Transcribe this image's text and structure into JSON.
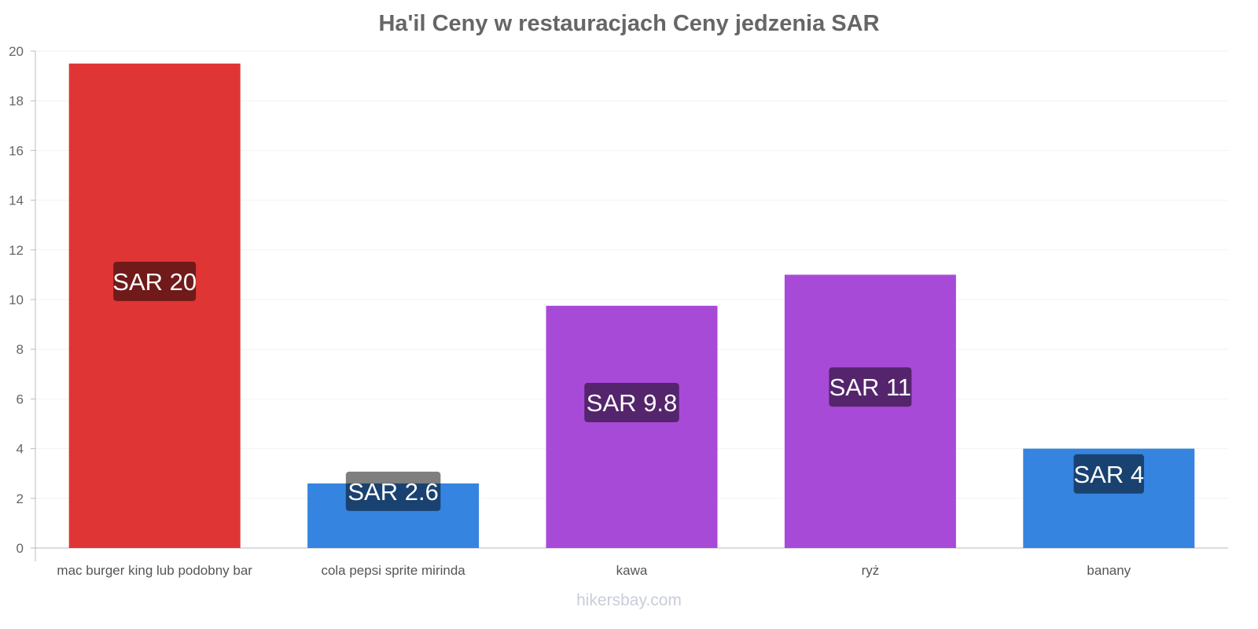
{
  "chart_data": {
    "type": "bar",
    "title": "Ha'il Ceny w restauracjach Ceny jedzenia SAR",
    "categories": [
      "mac burger king lub podobny bar",
      "cola pepsi sprite mirinda",
      "kawa",
      "ryż",
      "banany"
    ],
    "values": [
      19.5,
      2.6,
      9.75,
      11,
      4
    ],
    "data_labels": [
      "SAR 20",
      "SAR 2.6",
      "SAR 9.8",
      "SAR 11",
      "SAR 4"
    ],
    "colors": [
      "#e03535",
      "#3584e0",
      "#a84ad8",
      "#a84ad8",
      "#3584e0"
    ],
    "xlabel": "",
    "ylabel": "",
    "ylim": [
      0,
      20
    ],
    "yticks": [
      0,
      2,
      4,
      6,
      8,
      10,
      12,
      14,
      16,
      18,
      20
    ],
    "grid": true,
    "legend": "none"
  },
  "watermark": "hikersbay.com"
}
